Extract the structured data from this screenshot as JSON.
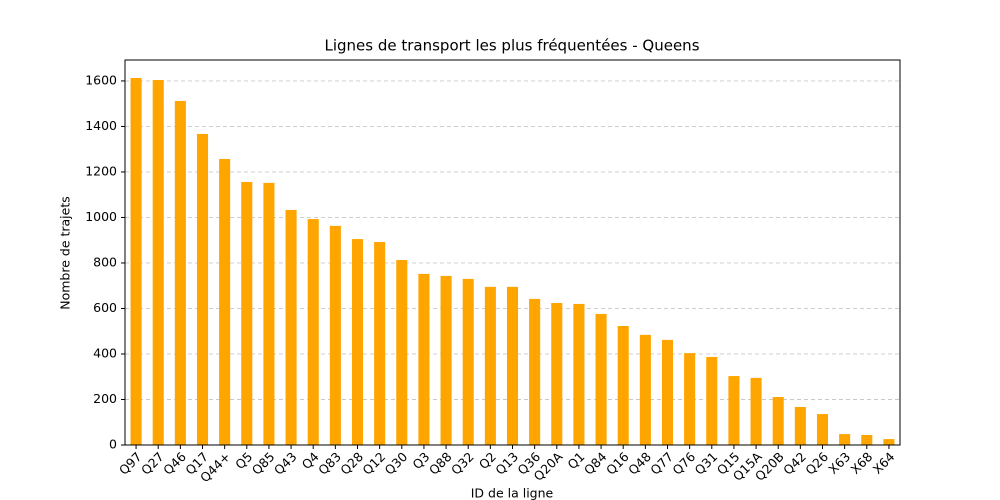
{
  "chart_data": {
    "type": "bar",
    "title": "Lignes de transport les plus fréquentées - Queens",
    "x_label": "ID de la ligne",
    "y_label": "Nombre de trajets",
    "categories": [
      "Q97",
      "Q27",
      "Q46",
      "Q17",
      "Q44+",
      "Q5",
      "Q85",
      "Q43",
      "Q4",
      "Q83",
      "Q28",
      "Q12",
      "Q30",
      "Q3",
      "Q88",
      "Q32",
      "Q2",
      "Q13",
      "Q36",
      "Q20A",
      "Q1",
      "Q84",
      "Q16",
      "Q48",
      "Q77",
      "Q76",
      "Q31",
      "Q15",
      "Q15A",
      "Q20B",
      "Q42",
      "Q26",
      "X63",
      "X68",
      "X64"
    ],
    "values": [
      1613,
      1604,
      1512,
      1367,
      1257,
      1156,
      1152,
      1033,
      993,
      963,
      905,
      892,
      813,
      752,
      743,
      730,
      695,
      695,
      642,
      624,
      620,
      576,
      523,
      484,
      462,
      404,
      387,
      303,
      295,
      211,
      167,
      136,
      48,
      44,
      26
    ],
    "color": "#ffa500",
    "ylim": [
      0,
      1692
    ],
    "yticks": [
      0,
      200,
      400,
      600,
      800,
      1000,
      1200,
      1400,
      1600
    ],
    "grid": true
  }
}
